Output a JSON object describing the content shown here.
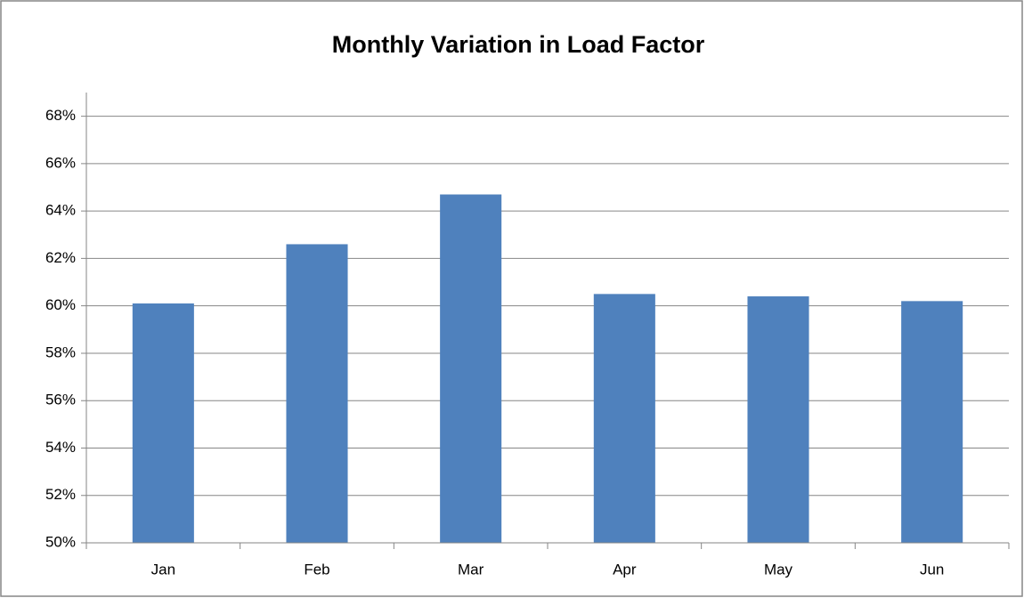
{
  "chart_data": {
    "type": "bar",
    "title": "Monthly Variation in Load Factor",
    "categories": [
      "Jan",
      "Feb",
      "Mar",
      "Apr",
      "May",
      "Jun"
    ],
    "values": [
      60.1,
      62.6,
      64.7,
      60.5,
      60.4,
      60.2
    ],
    "color": "#4f81bd",
    "ylim": [
      50,
      69
    ],
    "yticks": [
      {
        "value": 50,
        "label": "50%"
      },
      {
        "value": 52,
        "label": "52%"
      },
      {
        "value": 54,
        "label": "54%"
      },
      {
        "value": 56,
        "label": "56%"
      },
      {
        "value": 58,
        "label": "58%"
      },
      {
        "value": 60,
        "label": "60%"
      },
      {
        "value": 62,
        "label": "62%"
      },
      {
        "value": 64,
        "label": "64%"
      },
      {
        "value": 66,
        "label": "66%"
      },
      {
        "value": 68,
        "label": "68%"
      }
    ],
    "grid": true
  }
}
